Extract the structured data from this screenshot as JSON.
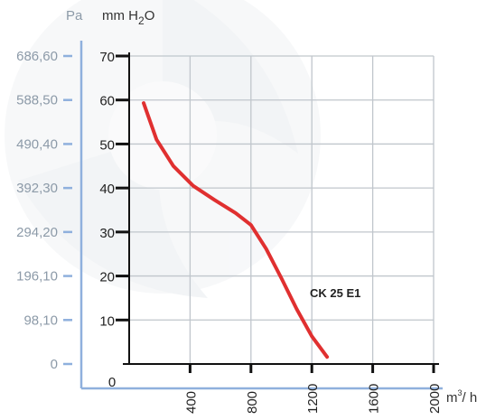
{
  "chart_data": {
    "type": "line",
    "left_unit": "Pa",
    "right_unit_prefix": "mm H",
    "right_unit_sub": "2",
    "right_unit_suffix": "O",
    "x_unit_main": "m",
    "x_unit_sup": "3",
    "x_unit_tail": "/ h",
    "ylim": [
      0,
      70
    ],
    "xlim": [
      0,
      2000
    ],
    "y_ticks": [
      0,
      10,
      20,
      30,
      40,
      50,
      60,
      70
    ],
    "y_tick_labels": [
      "0",
      "10",
      "20",
      "30",
      "40",
      "50",
      "60",
      "70"
    ],
    "pa_ticks": [
      0,
      10,
      20,
      30,
      40,
      50,
      60,
      70
    ],
    "pa_tick_labels": [
      "0",
      "98,10",
      "196,10",
      "294,20",
      "392,30",
      "490,40",
      "588,50",
      "686,60"
    ],
    "x_ticks": [
      0,
      400,
      800,
      1200,
      1600,
      2000
    ],
    "x_tick_labels": [
      "0",
      "400",
      "800",
      "1200",
      "1600",
      "2000"
    ],
    "grid": true,
    "series": [
      {
        "name": "CK 25 E1",
        "color": "#e03030",
        "x": [
          95,
          180,
          290,
          420,
          560,
          700,
          800,
          900,
          1000,
          1100,
          1200,
          1300
        ],
        "y": [
          59.3,
          51.0,
          45.0,
          40.5,
          37.3,
          34.3,
          31.6,
          26.2,
          19.5,
          12.5,
          6.3,
          1.6
        ]
      }
    ]
  }
}
